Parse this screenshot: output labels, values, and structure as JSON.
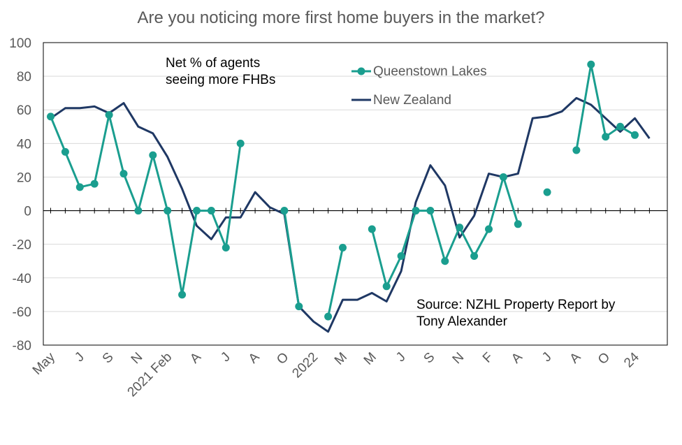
{
  "chart_data": {
    "type": "line",
    "title": "Are you noticing more first home buyers in the market?",
    "ylim": [
      -80,
      100
    ],
    "yticks": [
      100,
      80,
      60,
      40,
      20,
      0,
      -20,
      -40,
      -60,
      -80
    ],
    "grid": true,
    "legend_position": "top-right",
    "x_tick_labels": [
      {
        "i": 0,
        "label": "May"
      },
      {
        "i": 2,
        "label": "J"
      },
      {
        "i": 4,
        "label": "S"
      },
      {
        "i": 6,
        "label": "N"
      },
      {
        "i": 8,
        "label": "2021 Feb"
      },
      {
        "i": 10,
        "label": "A"
      },
      {
        "i": 12,
        "label": "J"
      },
      {
        "i": 14,
        "label": "A"
      },
      {
        "i": 16,
        "label": "O"
      },
      {
        "i": 18,
        "label": "2022"
      },
      {
        "i": 20,
        "label": "M"
      },
      {
        "i": 22,
        "label": "M"
      },
      {
        "i": 24,
        "label": "J"
      },
      {
        "i": 26,
        "label": "S"
      },
      {
        "i": 28,
        "label": "N"
      },
      {
        "i": 30,
        "label": "F"
      },
      {
        "i": 32,
        "label": "A"
      },
      {
        "i": 34,
        "label": "J"
      },
      {
        "i": 36,
        "label": "A"
      },
      {
        "i": 38,
        "label": "O"
      },
      {
        "i": 40,
        "label": "24"
      }
    ],
    "series": [
      {
        "name": "Queenstown Lakes",
        "color": "#1a9e8f",
        "values": [
          56,
          35,
          14,
          16,
          57,
          22,
          0,
          33,
          0,
          -50,
          0,
          0,
          -22,
          40,
          null,
          null,
          0,
          -57,
          null,
          -63,
          -22,
          null,
          -11,
          -45,
          -27,
          0,
          0,
          -30,
          -10,
          -27,
          -11,
          20,
          -8,
          null,
          11,
          null,
          36,
          87,
          44,
          50,
          45,
          null
        ]
      },
      {
        "name": "New Zealand",
        "color": "#1f3864",
        "values": [
          55,
          61,
          61,
          62,
          58,
          64,
          50,
          46,
          32,
          13,
          -9,
          -17,
          -4,
          -4,
          11,
          2,
          -2,
          -57,
          -66,
          -72,
          -53,
          -53,
          -49,
          -54,
          -36,
          5,
          27,
          15,
          -16,
          -3,
          22,
          20,
          22,
          55,
          56,
          59,
          67,
          63,
          55,
          47,
          55,
          43
        ]
      }
    ],
    "annotations": {
      "net_line1": "Net % of agents",
      "net_line2": "seeing more FHBs",
      "source_line1": "Source: NZHL Property Report by",
      "source_line2": "Tony Alexander"
    }
  }
}
